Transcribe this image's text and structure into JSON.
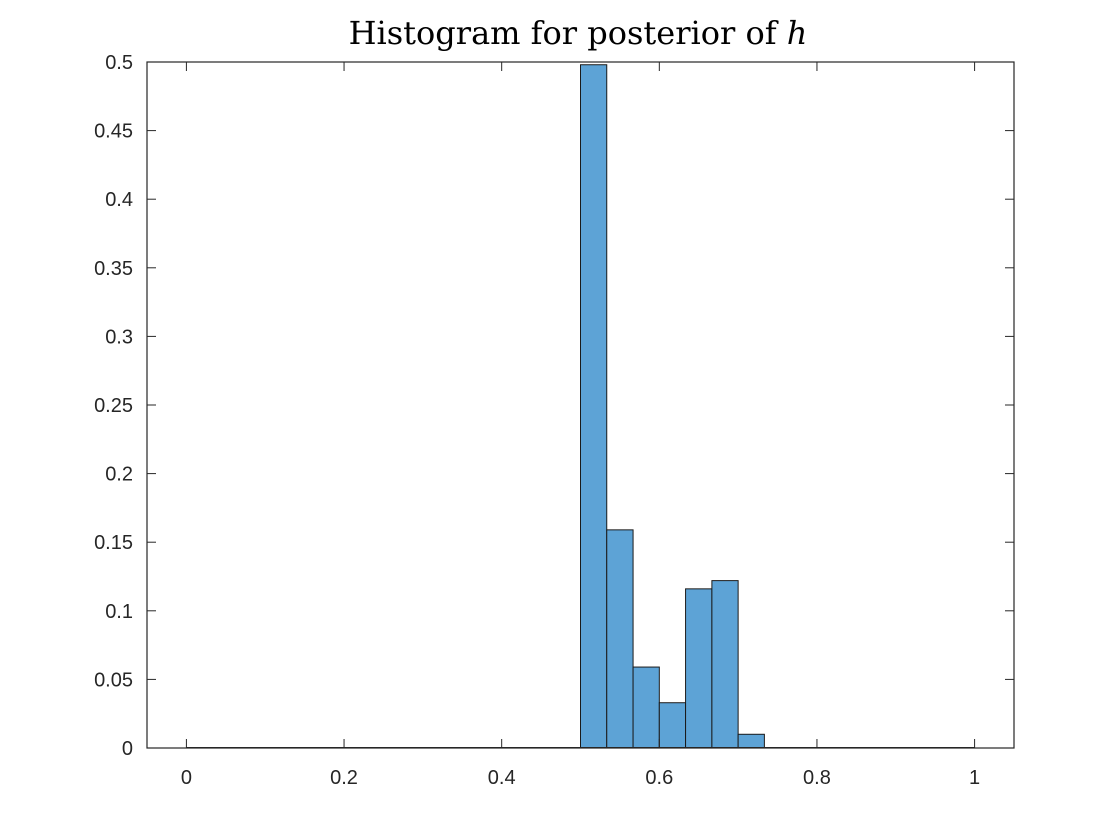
{
  "chart_data": {
    "type": "bar",
    "title": "Histogram for posterior of ",
    "title_variable": "h",
    "xlabel": "",
    "ylabel": "",
    "xlim": [
      -0.05,
      1.05
    ],
    "ylim": [
      0,
      0.5
    ],
    "x_ticks": [
      "0",
      "0.2",
      "0.4",
      "0.6",
      "0.8",
      "1"
    ],
    "x_tick_values": [
      0,
      0.2,
      0.4,
      0.6,
      0.8,
      1
    ],
    "y_ticks": [
      "0",
      "0.05",
      "0.1",
      "0.15",
      "0.2",
      "0.25",
      "0.3",
      "0.35",
      "0.4",
      "0.45",
      "0.5"
    ],
    "y_tick_values": [
      0,
      0.05,
      0.1,
      0.15,
      0.2,
      0.25,
      0.3,
      0.35,
      0.4,
      0.45,
      0.5
    ],
    "grid": false,
    "bar_color": "#5DA3D6",
    "bar_edge_color": "#1a1a1a",
    "bin_edges": [
      0.5,
      0.5333,
      0.5667,
      0.6,
      0.6333,
      0.6667,
      0.7,
      0.7333
    ],
    "values": [
      0.498,
      0.159,
      0.059,
      0.033,
      0.116,
      0.122,
      0.01
    ]
  }
}
